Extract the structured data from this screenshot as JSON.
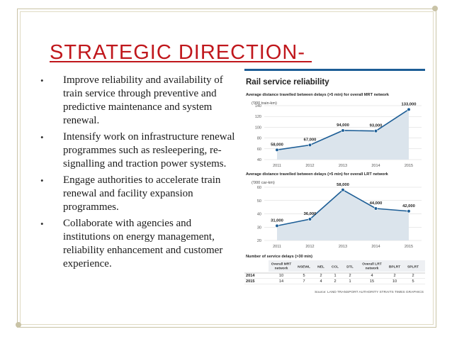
{
  "slide": {
    "title": "STRATEGIC DIRECTION- ",
    "bullets": [
      "Improve reliability and availability of train service through preventive and predictive maintenance and system renewal.",
      "Intensify work on infrastructure renewal programmes such as resleepering, re-signalling and traction power systems.",
      " Engage authorities to accelerate train renewal and facility expansion programmes.",
      "Collaborate with agencies and institutions on energy management, reliability enhancement and customer experience."
    ]
  },
  "figure": {
    "heading": "Rail service reliability",
    "source": "Source: LAND TRANSPORT AUTHORITY   STRAITS TIMES GRAPHICS",
    "colors": {
      "line": "#1d5e96",
      "fill": "#dbe4ec",
      "accent": "#1d5e96",
      "heading": "#222222"
    },
    "table": {
      "title": "Number of service delays (>30 min)",
      "headers": [
        "",
        "Overall MRT network",
        "NSEWL",
        "NEL",
        "CCL",
        "DTL",
        "Overall LRT network",
        "BPLRT",
        "SPLRT"
      ],
      "rows": [
        [
          "2014",
          "10",
          "5",
          "2",
          "1",
          "2",
          "4",
          "2",
          "2"
        ],
        [
          "2015",
          "14",
          "7",
          "4",
          "2",
          "1",
          "15",
          "10",
          "5"
        ]
      ]
    }
  },
  "chart_data": [
    {
      "type": "area",
      "title": "Average distance travelled between delays (>5 min) for overall MRT network",
      "unit": "('000 train-km)",
      "categories": [
        "2011",
        "2012",
        "2013",
        "2014",
        "2015"
      ],
      "values": [
        58,
        67,
        94,
        93,
        133
      ],
      "data_labels": [
        "58,000",
        "67,000",
        "94,000",
        "93,000",
        "133,000"
      ],
      "yticks": [
        40,
        60,
        80,
        100,
        120,
        140
      ],
      "ylim": [
        40,
        140
      ]
    },
    {
      "type": "area",
      "title": "Average distance travelled between delays (>5 min) for overall LRT network",
      "unit": "('000 car-km)",
      "categories": [
        "2011",
        "2012",
        "2013",
        "2014",
        "2015"
      ],
      "values": [
        31,
        36,
        58,
        44,
        42
      ],
      "data_labels": [
        "31,000",
        "36,000",
        "58,000",
        "44,000",
        "42,000"
      ],
      "yticks": [
        20,
        30,
        40,
        50,
        60
      ],
      "ylim": [
        20,
        60
      ]
    }
  ]
}
